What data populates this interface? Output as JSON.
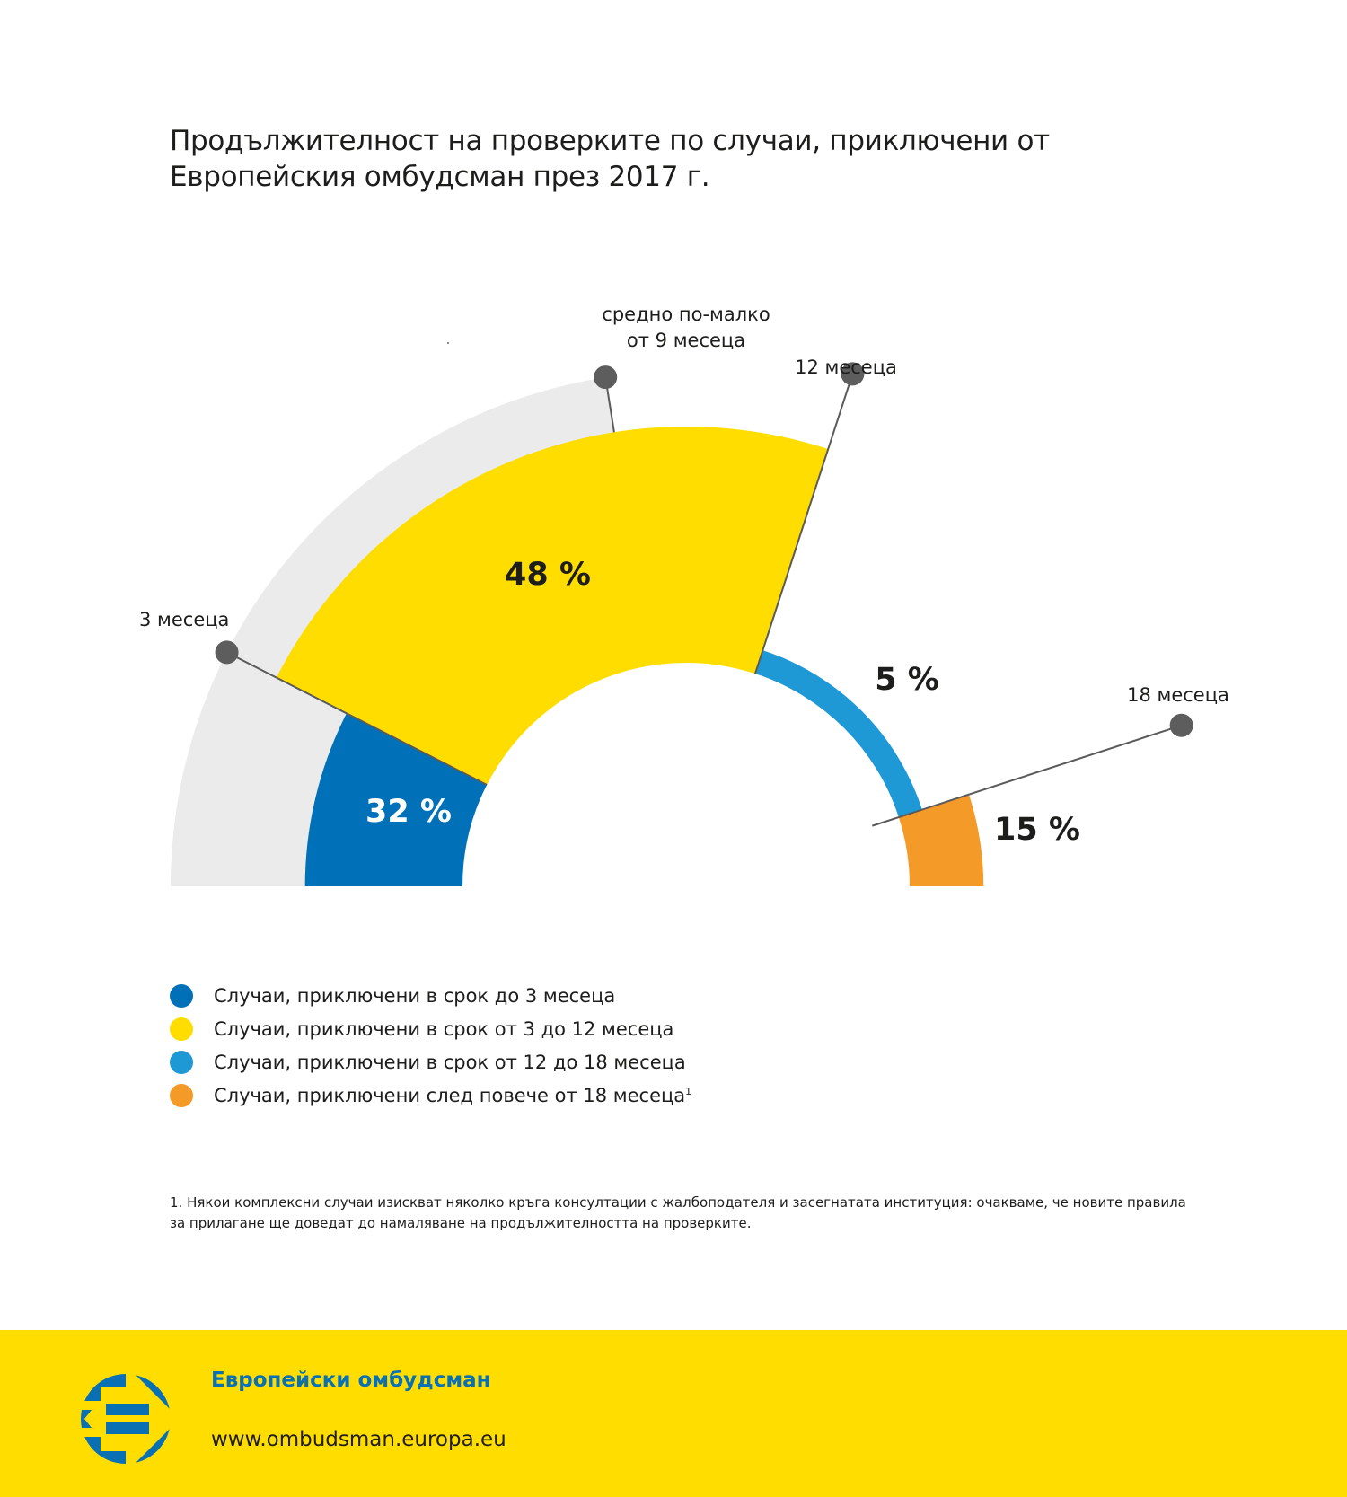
{
  "header": {
    "title": "Продължителност на проверките по случаи, приключени от Европейския омбудсман през 2017 г."
  },
  "chart_data": {
    "type": "pie",
    "subtype": "half-donut",
    "title": "Продължителност на проверките по случаи, приключени от Европейския омбудсман през 2017 г.",
    "series": [
      {
        "name": "Случаи, приключени в срок до 3 месеца",
        "value": 32,
        "label": "32 %",
        "color": "#0071b9",
        "label_color": "#ffffff"
      },
      {
        "name": "Случаи, приключени в срок от 3 до 12 месеца",
        "value": 48,
        "label": "48 %",
        "color": "#ffdd00",
        "label_color": "#1d1d1b"
      },
      {
        "name": "Случаи, приключени в срок от 12 до 18 месеца",
        "value": 5,
        "label": "5 %",
        "color": "#1f99d6",
        "label_color": "#1d1d1b"
      },
      {
        "name": "Случаи, приключени след повече от 18 месеца",
        "value": 15,
        "label": "15 %",
        "color": "#f39a28",
        "label_color": "#1d1d1b"
      }
    ],
    "scale_max_months": 20,
    "background_arc_color": "#ebebeb",
    "markers": [
      {
        "months": 3,
        "label": [
          "3 месеца"
        ]
      },
      {
        "months": 9,
        "label": [
          "средно по-малко",
          "от 9 месеца"
        ]
      },
      {
        "months": 12,
        "label": [
          "12 месеца"
        ]
      },
      {
        "months": 18,
        "label": [
          "18 месеца"
        ]
      }
    ],
    "legend_position": "bottom-left"
  },
  "legend": {
    "items": [
      {
        "label": "Случаи, приключени в срок до 3 месеца",
        "color": "#0071b9",
        "sup": ""
      },
      {
        "label": "Случаи, приключени в срок от 3 до 12 месеца",
        "color": "#ffdd00",
        "sup": ""
      },
      {
        "label": "Случаи, приключени в срок от 12 до 18 месеца",
        "color": "#1f99d6",
        "sup": ""
      },
      {
        "label": "Случаи, приключени след повече от 18 месеца",
        "color": "#f39a28",
        "sup": "1"
      }
    ]
  },
  "footnote": "1.  Някои комплексни случаи изискват няколко кръга консултации с жалбоподателя и засегнатата институция: очакваме, че новите правила за прилагане ще доведат до намаляване на продължителността на проверките.",
  "footer": {
    "organization": "Европейски омбудсман",
    "url": "www.ombudsman.europa.eu",
    "logo_icon": "european-ombudsman-logo-icon",
    "background": "#ffdd00",
    "brand_color": "#0a70b4"
  }
}
